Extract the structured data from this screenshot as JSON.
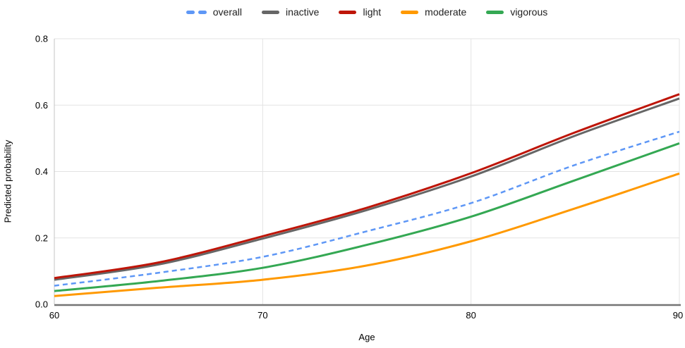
{
  "chart_data": {
    "type": "line",
    "title": "",
    "xlabel": "Age",
    "ylabel": "Predicted probability",
    "x": [
      60,
      65,
      70,
      75,
      80,
      85,
      90
    ],
    "x_range": [
      60,
      90
    ],
    "y_range": [
      0,
      0.8
    ],
    "x_ticks": [
      {
        "label": "60",
        "value": 60
      },
      {
        "label": "70",
        "value": 70
      },
      {
        "label": "80",
        "value": 80
      },
      {
        "label": "90",
        "value": 90
      }
    ],
    "y_ticks": [
      {
        "label": "0.0",
        "value": 0.0
      },
      {
        "label": "0.2",
        "value": 0.2
      },
      {
        "label": "0.4",
        "value": 0.4
      },
      {
        "label": "0.6",
        "value": 0.6
      },
      {
        "label": "0.8",
        "value": 0.8
      }
    ],
    "grid": true,
    "legend_position": "top",
    "colors": {
      "gridline": "#e3e3e3",
      "plot_border": "#c4c4c4",
      "axis_line": "#757575",
      "text": "#000000",
      "legend_text": "#212121"
    },
    "series": [
      {
        "name": "overall",
        "color": "#5e97f6",
        "dashed": true,
        "line_width": 2.5,
        "values": [
          0.056,
          0.095,
          0.143,
          0.22,
          0.305,
          0.42,
          0.52
        ]
      },
      {
        "name": "inactive",
        "color": "#666666",
        "dashed": false,
        "line_width": 3,
        "values": [
          0.074,
          0.12,
          0.198,
          0.284,
          0.385,
          0.508,
          0.62
        ]
      },
      {
        "name": "light",
        "color": "#be1508",
        "dashed": false,
        "line_width": 3,
        "values": [
          0.079,
          0.126,
          0.205,
          0.291,
          0.395,
          0.518,
          0.633
        ]
      },
      {
        "name": "moderate",
        "color": "#ff9900",
        "dashed": false,
        "line_width": 3,
        "values": [
          0.025,
          0.05,
          0.074,
          0.117,
          0.19,
          0.289,
          0.394
        ]
      },
      {
        "name": "vigorous",
        "color": "#34a853",
        "dashed": false,
        "line_width": 3,
        "values": [
          0.04,
          0.07,
          0.11,
          0.179,
          0.264,
          0.374,
          0.485
        ]
      }
    ]
  }
}
